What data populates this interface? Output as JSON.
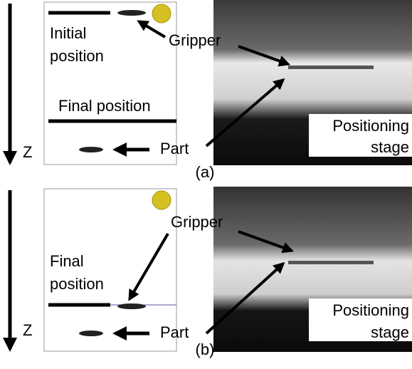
{
  "panels": [
    {
      "caption": "(a)",
      "gripper": "Gripper",
      "position": [
        "Initial",
        "position"
      ],
      "final_position": "Final position",
      "axis": "Z",
      "part": "Part",
      "stage": [
        "Positioning",
        "stage"
      ]
    },
    {
      "caption": "(b)",
      "gripper": "Gripper",
      "position": [
        "Final",
        "position"
      ],
      "axis": "Z",
      "part": "Part",
      "stage": [
        "Positioning",
        "stage"
      ]
    }
  ]
}
